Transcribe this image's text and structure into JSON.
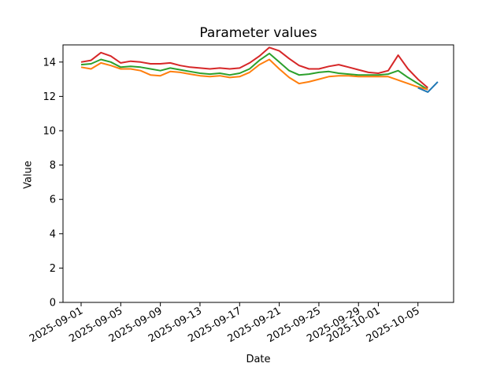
{
  "figure": {
    "background": "#ffffff",
    "axis_color": "#000000",
    "text_color": "#000000"
  },
  "chart_data": {
    "type": "line",
    "title": "Parameter values",
    "xlabel": "Date",
    "ylabel": "Value",
    "ylim": [
      0,
      15
    ],
    "grid": false,
    "legend": "none",
    "x_dates": [
      "2025-09-01",
      "2025-09-02",
      "2025-09-03",
      "2025-09-04",
      "2025-09-05",
      "2025-09-06",
      "2025-09-07",
      "2025-09-08",
      "2025-09-09",
      "2025-09-10",
      "2025-09-11",
      "2025-09-12",
      "2025-09-13",
      "2025-09-14",
      "2025-09-15",
      "2025-09-16",
      "2025-09-17",
      "2025-09-18",
      "2025-09-19",
      "2025-09-20",
      "2025-09-21",
      "2025-09-22",
      "2025-09-23",
      "2025-09-24",
      "2025-09-25",
      "2025-09-26",
      "2025-09-27",
      "2025-09-28",
      "2025-09-29",
      "2025-09-30",
      "2025-10-01",
      "2025-10-02",
      "2025-10-03",
      "2025-10-04",
      "2025-10-05",
      "2025-10-06"
    ],
    "series": [
      {
        "name": "red",
        "color": "#d62728",
        "start_day": 0,
        "values": [
          14.0,
          14.1,
          14.55,
          14.35,
          13.95,
          14.05,
          14.0,
          13.9,
          13.9,
          13.95,
          13.8,
          13.7,
          13.65,
          13.6,
          13.65,
          13.6,
          13.65,
          13.95,
          14.35,
          14.85,
          14.65,
          14.2,
          13.8,
          13.6,
          13.6,
          13.75,
          13.85,
          13.7,
          13.55,
          13.4,
          13.35,
          13.5,
          14.4,
          13.6,
          13.0,
          12.5
        ]
      },
      {
        "name": "green",
        "color": "#2ca02c",
        "start_day": 0,
        "values": [
          13.85,
          13.9,
          14.15,
          14.0,
          13.7,
          13.75,
          13.7,
          13.6,
          13.5,
          13.65,
          13.55,
          13.45,
          13.35,
          13.3,
          13.35,
          13.25,
          13.35,
          13.6,
          14.1,
          14.5,
          14.0,
          13.5,
          13.25,
          13.3,
          13.4,
          13.45,
          13.35,
          13.3,
          13.25,
          13.25,
          13.25,
          13.3,
          13.5,
          13.1,
          12.75,
          12.4
        ]
      },
      {
        "name": "orange",
        "color": "#ff7f0e",
        "start_day": 0,
        "values": [
          13.7,
          13.6,
          13.95,
          13.8,
          13.6,
          13.6,
          13.5,
          13.25,
          13.2,
          13.45,
          13.4,
          13.3,
          13.2,
          13.15,
          13.2,
          13.1,
          13.15,
          13.4,
          13.85,
          14.15,
          13.6,
          13.1,
          12.75,
          12.85,
          13.0,
          13.15,
          13.2,
          13.2,
          13.15,
          13.15,
          13.15,
          13.15,
          12.95,
          12.75,
          12.55,
          12.4
        ]
      },
      {
        "name": "blue",
        "color": "#1f77b4",
        "start_day": 34,
        "dates": [
          "2025-10-05",
          "2025-10-06",
          "2025-10-07"
        ],
        "values": [
          12.5,
          12.25,
          12.85
        ]
      }
    ],
    "x_ticks": [
      {
        "label": "2025-09-01",
        "day": 0
      },
      {
        "label": "2025-09-05",
        "day": 4
      },
      {
        "label": "2025-09-09",
        "day": 8
      },
      {
        "label": "2025-09-13",
        "day": 12
      },
      {
        "label": "2025-09-17",
        "day": 16
      },
      {
        "label": "2025-09-21",
        "day": 20
      },
      {
        "label": "2025-09-25",
        "day": 24
      },
      {
        "label": "2025-09-29",
        "day": 28
      },
      {
        "label": "2025-10-01",
        "day": 30
      },
      {
        "label": "2025-10-05",
        "day": 34
      }
    ],
    "y_ticks": [
      0,
      2,
      4,
      6,
      8,
      10,
      12,
      14
    ]
  }
}
